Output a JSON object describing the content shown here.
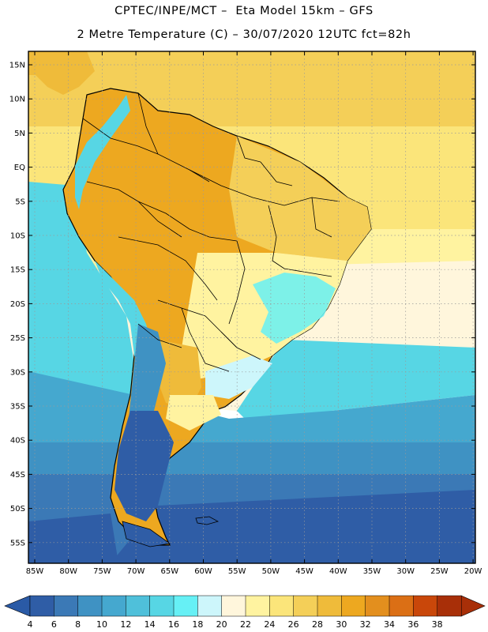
{
  "header": {
    "line1": "CPTEC/INPE/MCT –  Eta Model 15km – GFS",
    "line2": "2 Metre Temperature (C) – 30/07/2020 12UTC fct=82h"
  },
  "axes": {
    "lat_labels": [
      "15N",
      "10N",
      "5N",
      "EQ",
      "5S",
      "10S",
      "15S",
      "20S",
      "25S",
      "30S",
      "35S",
      "40S",
      "45S",
      "50S",
      "55S"
    ],
    "lon_labels": [
      "85W",
      "80W",
      "75W",
      "70W",
      "65W",
      "60W",
      "55W",
      "50W",
      "45W",
      "40W",
      "35W",
      "30W",
      "25W",
      "20W"
    ]
  },
  "colorbar": {
    "labels": [
      "4",
      "6",
      "8",
      "10",
      "12",
      "14",
      "16",
      "18",
      "20",
      "22",
      "24",
      "26",
      "28",
      "30",
      "32",
      "34",
      "36",
      "38"
    ],
    "colors": [
      "#2f5da6",
      "#3b79b6",
      "#3f92c3",
      "#45a8cf",
      "#4fc0da",
      "#57d6e4",
      "#66f0f5",
      "#cdf6fb",
      "#fff6dc",
      "#fff3a0",
      "#fbe57a",
      "#f4cf58",
      "#efbb3a",
      "#eda820",
      "#e38f1e",
      "#db6f15",
      "#c9470a",
      "#a82f08"
    ],
    "under_color": "#2a5aa6",
    "over_color": "#a82f08"
  },
  "map_colors": {
    "deep_ocean": "#2f5da6",
    "cold_ocean": "#3b79b6",
    "cool_ocean": "#3f92c3",
    "mild_ocean": "#45a8cf",
    "warm_ocean": "#57d6e4",
    "pale_ocean": "#fff6dc",
    "yellow_ocean": "#fbe57a",
    "gold_ocean": "#f4cf58",
    "land_hot": "#eda820",
    "land_warm": "#efbb3a",
    "land_mild": "#f4cf58",
    "land_pale": "#fff3a0",
    "land_cool": "#66f0f5",
    "andes_cold": "#3f92c3",
    "patagonia": "#2f5da6",
    "border": "#000000"
  }
}
